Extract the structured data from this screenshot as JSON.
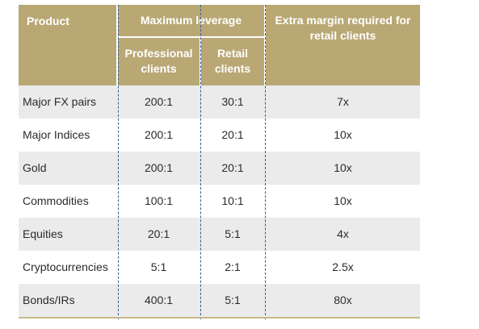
{
  "table": {
    "headers": {
      "product": "Product",
      "max_leverage": "Maximum leverage",
      "professional": "Professional clients",
      "retail": "Retail clients",
      "extra_margin": "Extra margin required for retail clients"
    },
    "rows": [
      {
        "product": "Major FX pairs",
        "professional": "200:1",
        "retail": "30:1",
        "extra": "7x"
      },
      {
        "product": "Major Indices",
        "professional": "200:1",
        "retail": "20:1",
        "extra": "10x"
      },
      {
        "product": "Gold",
        "professional": "200:1",
        "retail": "20:1",
        "extra": "10x"
      },
      {
        "product": "Commodities",
        "professional": "100:1",
        "retail": "10:1",
        "extra": "10x"
      },
      {
        "product": "Equities",
        "professional": "20:1",
        "retail": "5:1",
        "extra": "4x"
      },
      {
        "product": "Cryptocurrencies",
        "professional": "5:1",
        "retail": "2:1",
        "extra": "2.5x"
      },
      {
        "product": "Bonds/IRs",
        "professional": "400:1",
        "retail": "5:1",
        "extra": "80x"
      }
    ]
  },
  "colors": {
    "header_bg": "#b9a874",
    "header_text": "#ffffff",
    "row_shade": "#ebebeb",
    "divider": "#2e5d96"
  }
}
